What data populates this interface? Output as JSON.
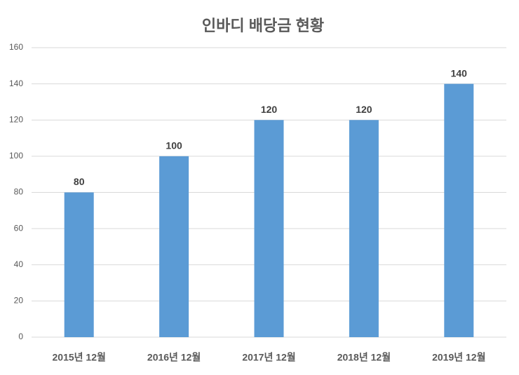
{
  "chart_data": {
    "type": "bar",
    "title": "인바디 배당금 현황",
    "categories": [
      "2015년 12월",
      "2016년 12월",
      "2017년 12월",
      "2018년 12월",
      "2019년 12월"
    ],
    "values": [
      80,
      100,
      120,
      120,
      140
    ],
    "color": "#5b9bd5",
    "ylim": [
      0,
      160
    ],
    "yticks": [
      0,
      20,
      40,
      60,
      80,
      100,
      120,
      140,
      160
    ],
    "grid": true
  }
}
